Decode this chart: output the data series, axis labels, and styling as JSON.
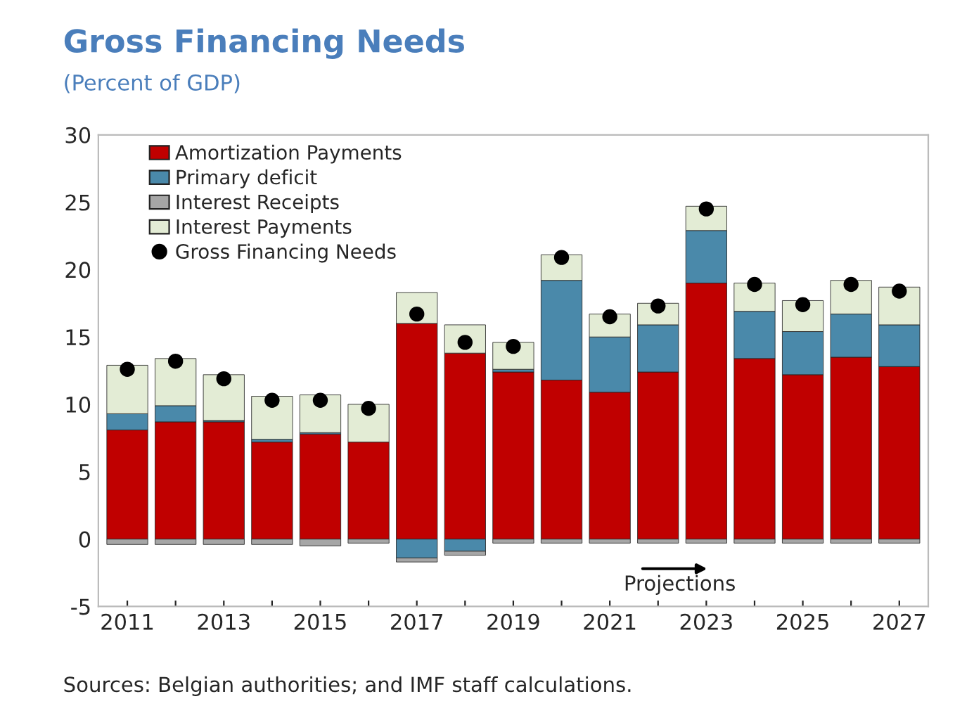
{
  "chart_data": {
    "type": "bar",
    "title": "Gross Financing Needs",
    "subtitle": "(Percent of GDP)",
    "categories": [
      "2011",
      null,
      "2013",
      null,
      "2015",
      null,
      "2017",
      null,
      "2019",
      null,
      "2021",
      null,
      "2023",
      null,
      "2025",
      null,
      "2027"
    ],
    "stacked": true,
    "series": [
      {
        "name": "Amortization Payments",
        "color": "#c00000",
        "values": [
          8.1,
          8.7,
          8.7,
          7.2,
          7.8,
          7.2,
          16.0,
          13.8,
          12.4,
          11.8,
          10.9,
          12.4,
          19.0,
          13.4,
          12.2,
          13.5,
          12.8
        ]
      },
      {
        "name": "Primary deficit",
        "color": "#4a89aa",
        "values": [
          1.2,
          1.2,
          0.1,
          0.2,
          0.1,
          null,
          -1.4,
          -0.9,
          0.2,
          7.4,
          4.1,
          3.5,
          3.9,
          3.5,
          3.2,
          3.2,
          3.1
        ]
      },
      {
        "name": "Interest Receipts",
        "color": "#a6a6a6",
        "values": [
          -0.4,
          -0.4,
          -0.4,
          -0.4,
          -0.5,
          -0.3,
          -0.3,
          -0.3,
          -0.3,
          -0.3,
          -0.3,
          -0.3,
          -0.3,
          -0.3,
          -0.3,
          -0.3,
          -0.3
        ]
      },
      {
        "name": "Interest Payments",
        "color": "#e3ecd5",
        "values": [
          3.6,
          3.5,
          3.4,
          3.2,
          2.8,
          2.8,
          2.3,
          2.1,
          2.0,
          1.9,
          1.7,
          1.6,
          1.8,
          2.1,
          2.3,
          2.5,
          2.8
        ]
      },
      {
        "name": "Gross Financing Needs",
        "type": "scatter",
        "color": "#000000",
        "values": [
          12.6,
          13.2,
          11.9,
          10.3,
          10.3,
          9.7,
          16.7,
          14.6,
          14.3,
          20.9,
          16.5,
          17.3,
          24.5,
          18.9,
          17.4,
          18.9,
          18.4
        ]
      }
    ],
    "ylim": [
      -5,
      30
    ],
    "yticks": [
      {
        "value": -5,
        "label": "-5"
      },
      0,
      5,
      10,
      15,
      20,
      25,
      30
    ],
    "legend": "top left",
    "grid": false,
    "marker": "circle",
    "annotations": [
      "Projections",
      "Sources: Belgian authorities; and IMF staff calculations."
    ]
  }
}
